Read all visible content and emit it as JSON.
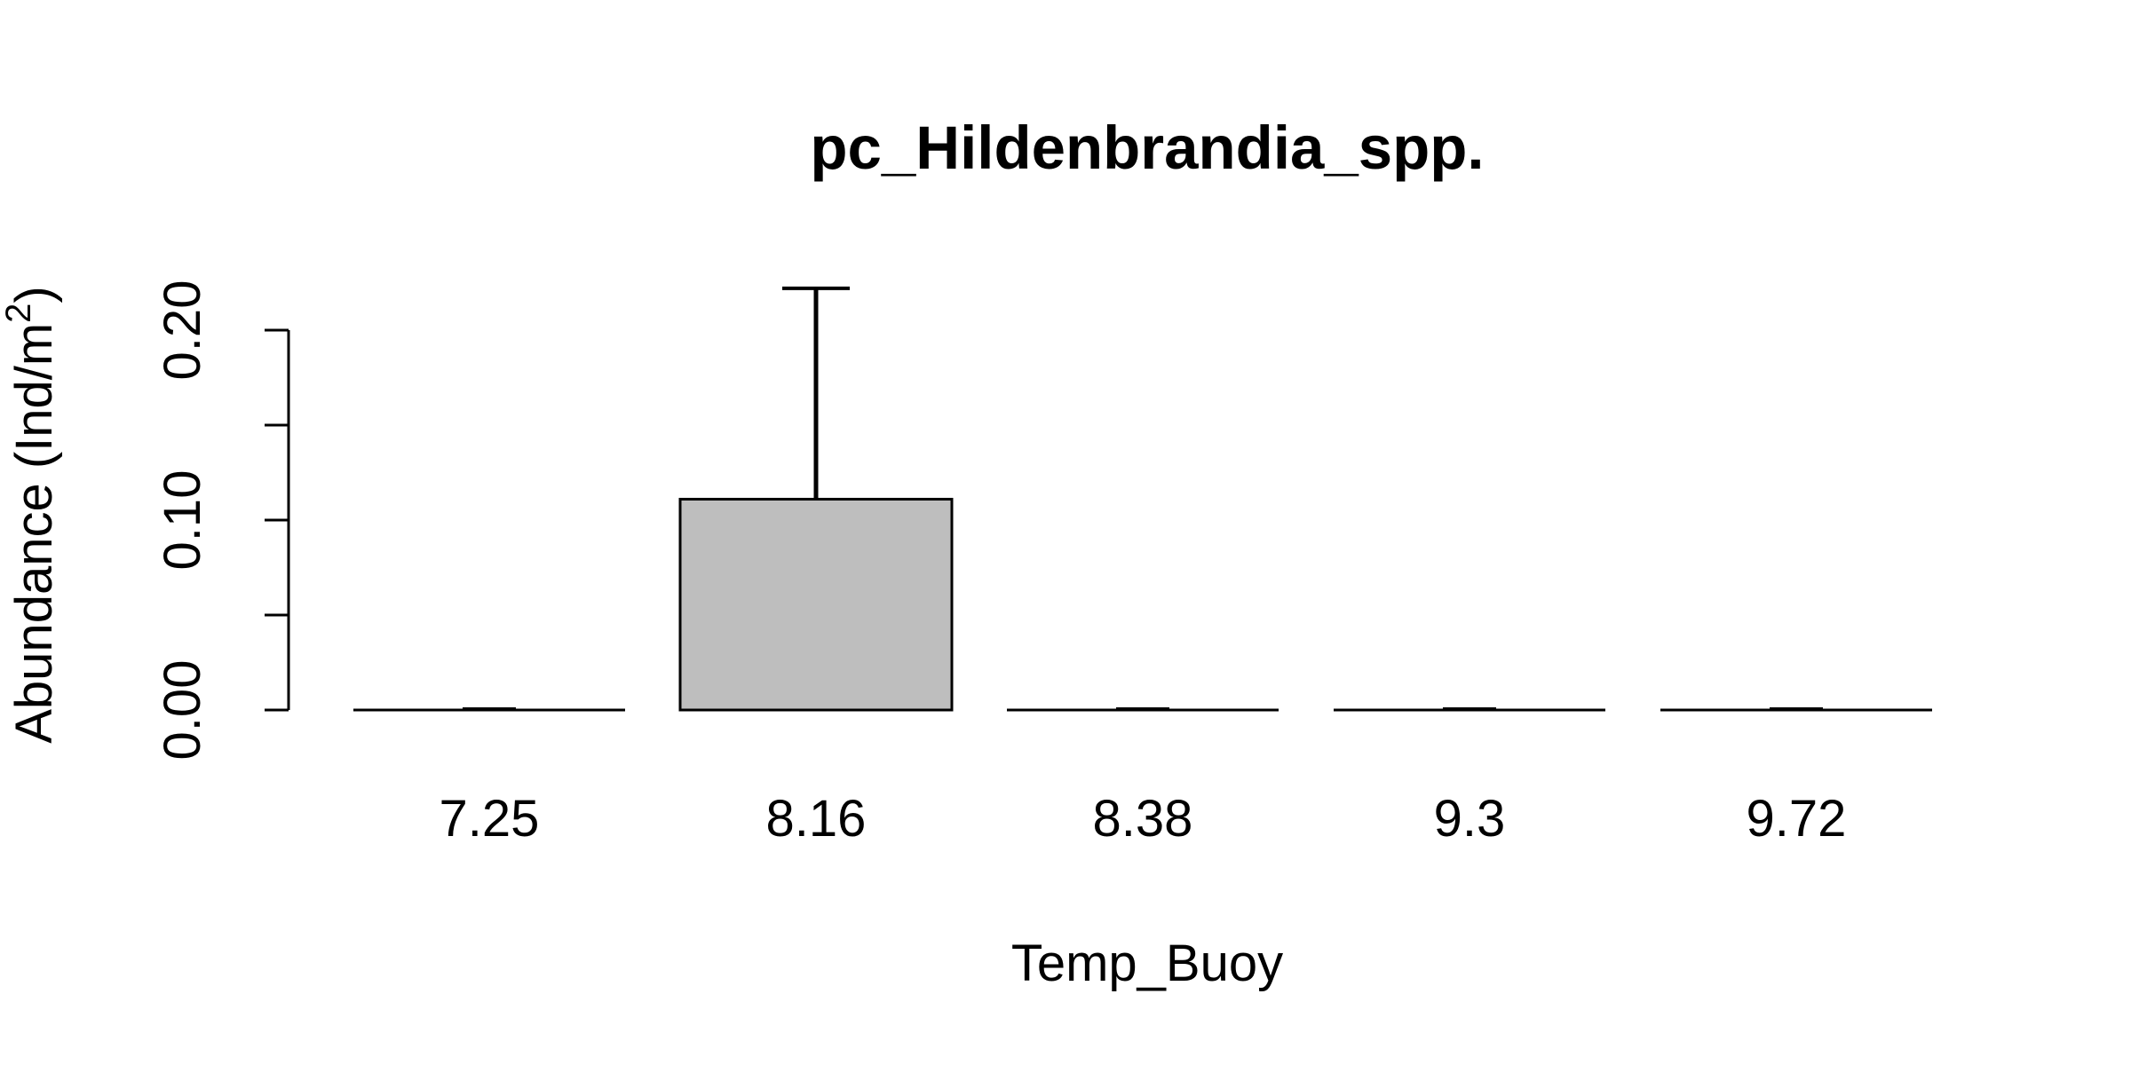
{
  "chart_data": {
    "type": "bar",
    "title": "pc_Hildenbrandia_spp.",
    "xlabel": "Temp_Buoy",
    "ylabel": "Abundance (Ind/m",
    "ylabel_superscript": "2",
    "ylabel_close": ")",
    "categories": [
      "7.25",
      "8.16",
      "8.38",
      "9.3",
      "9.72"
    ],
    "values": [
      0,
      0.111,
      0,
      0,
      0
    ],
    "error_upper": [
      0,
      0.222,
      0,
      0,
      0
    ],
    "ylim": [
      0,
      0.2
    ],
    "yticks": [
      0,
      0.05,
      0.1,
      0.15,
      0.2
    ],
    "ytick_labels": [
      "0.00",
      "",
      "0.10",
      "",
      "0.20"
    ],
    "grid": false,
    "bar_color": "#bebebe",
    "edge_color": "#000000"
  }
}
